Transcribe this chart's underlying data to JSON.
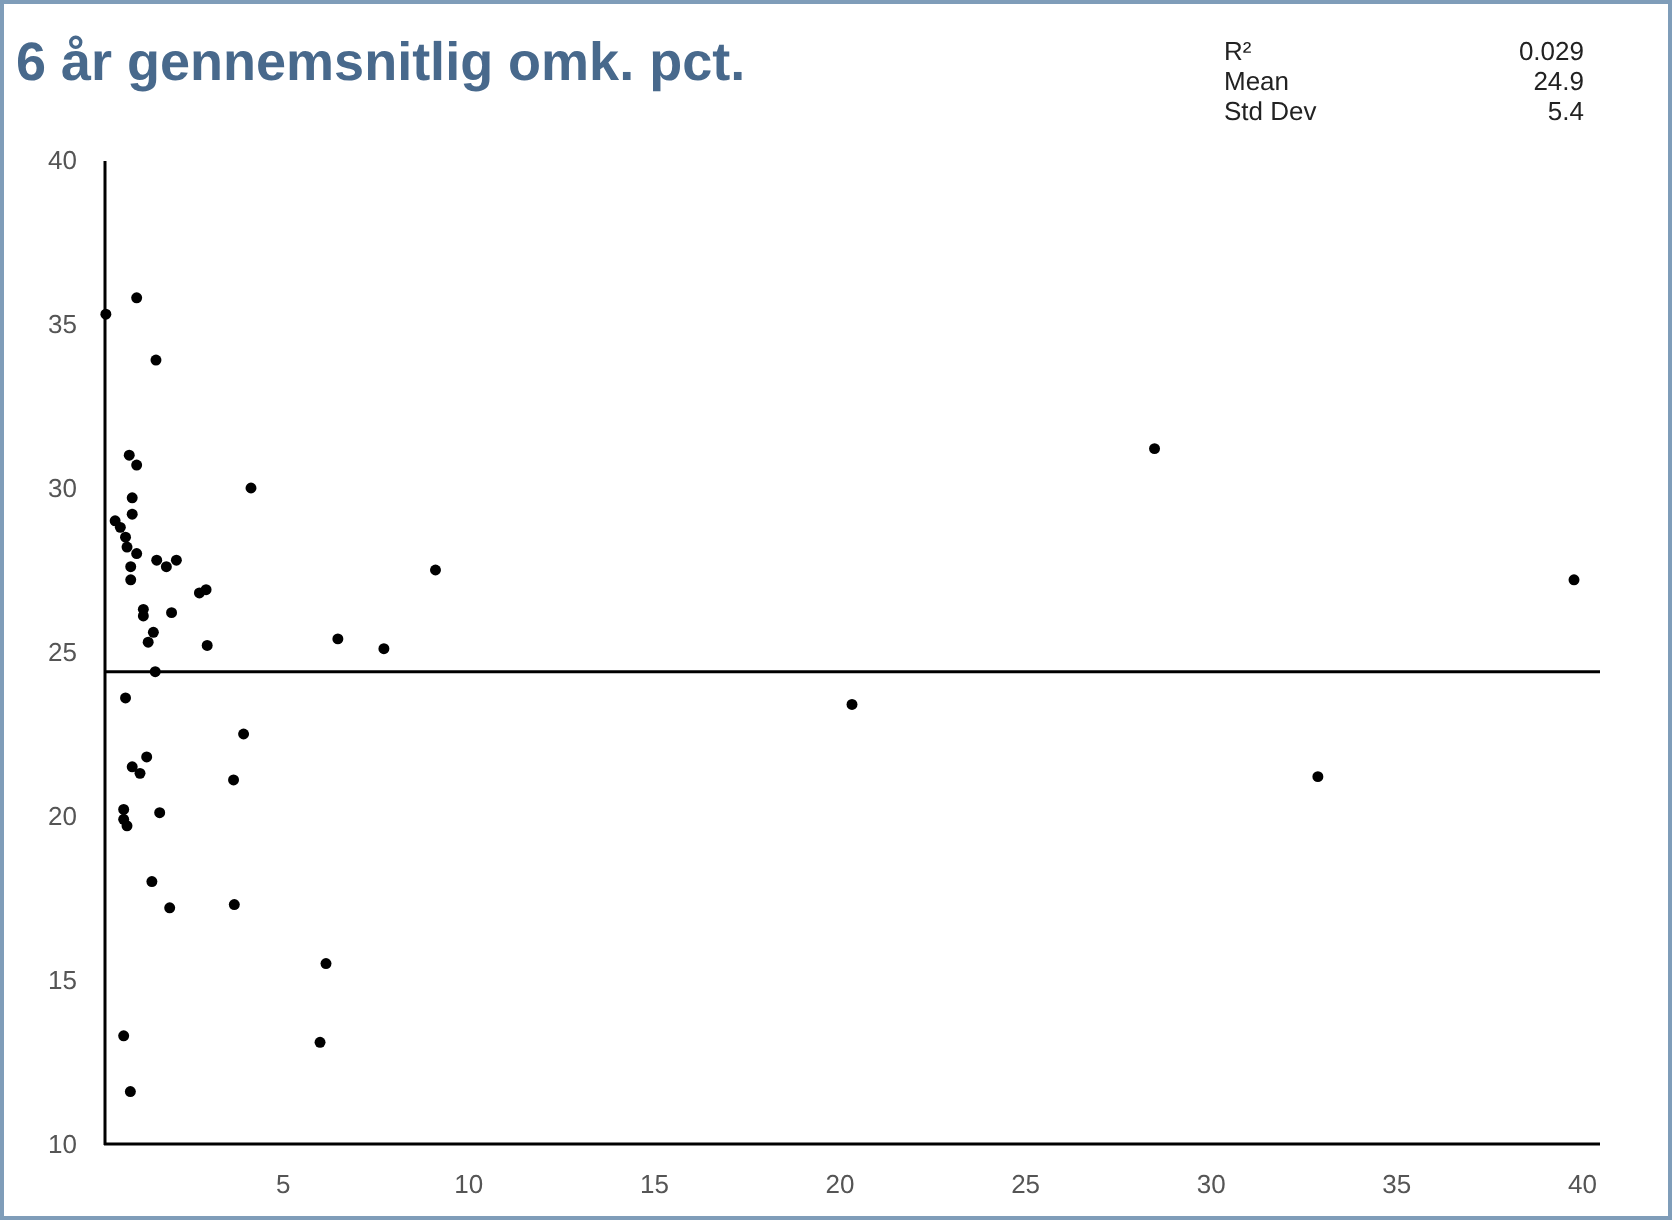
{
  "chart_data": {
    "type": "scatter",
    "title": "6 år gennemsnitlig omk. pct.",
    "annotations": [
      "R²",
      "0.029",
      "Mean",
      "24.9",
      "Std Dev",
      "5.4"
    ],
    "xlim": [
      0.2,
      40.5
    ],
    "xticks": [
      5,
      10,
      15,
      20,
      25,
      30,
      35,
      40
    ],
    "ylim": [
      10,
      40
    ],
    "yticks": [
      10,
      15,
      20,
      25,
      30,
      35,
      40
    ],
    "grid": false,
    "marker": "circle",
    "ref_lines": [
      {
        "axis": "y",
        "value": 24.4,
        "color": "#000000"
      }
    ],
    "series": [
      {
        "color": "#000000",
        "x": [
          0.25,
          1.08,
          1.6,
          0.88,
          1.08,
          4.16,
          0.96,
          0.96,
          0.5,
          0.64,
          0.78,
          0.82,
          1.08,
          0.92,
          0.92,
          1.62,
          1.88,
          2.15,
          9.13,
          2.77,
          2.95,
          1.26,
          1.26,
          2.02,
          1.53,
          1.39,
          2.98,
          6.5,
          7.74,
          1.58,
          0.78,
          3.96,
          1.35,
          0.96,
          1.17,
          3.69,
          0.73,
          0.73,
          0.82,
          1.7,
          1.49,
          1.97,
          3.71,
          6.18,
          6.02,
          0.73,
          0.91,
          28.5,
          39.8,
          20.35,
          32.9
        ],
        "values": [
          35.3,
          35.8,
          33.9,
          31.0,
          30.7,
          30.0,
          29.7,
          29.2,
          29.0,
          28.8,
          28.5,
          28.2,
          28.0,
          27.6,
          27.2,
          27.8,
          27.6,
          27.8,
          27.5,
          26.8,
          26.9,
          26.3,
          26.1,
          26.2,
          25.6,
          25.3,
          25.2,
          25.4,
          25.1,
          24.4,
          23.6,
          22.5,
          21.8,
          21.5,
          21.3,
          21.1,
          20.2,
          19.9,
          19.7,
          20.1,
          18.0,
          17.2,
          17.3,
          15.5,
          13.1,
          13.3,
          11.6,
          31.2,
          27.2,
          23.4,
          21.2
        ]
      }
    ]
  }
}
